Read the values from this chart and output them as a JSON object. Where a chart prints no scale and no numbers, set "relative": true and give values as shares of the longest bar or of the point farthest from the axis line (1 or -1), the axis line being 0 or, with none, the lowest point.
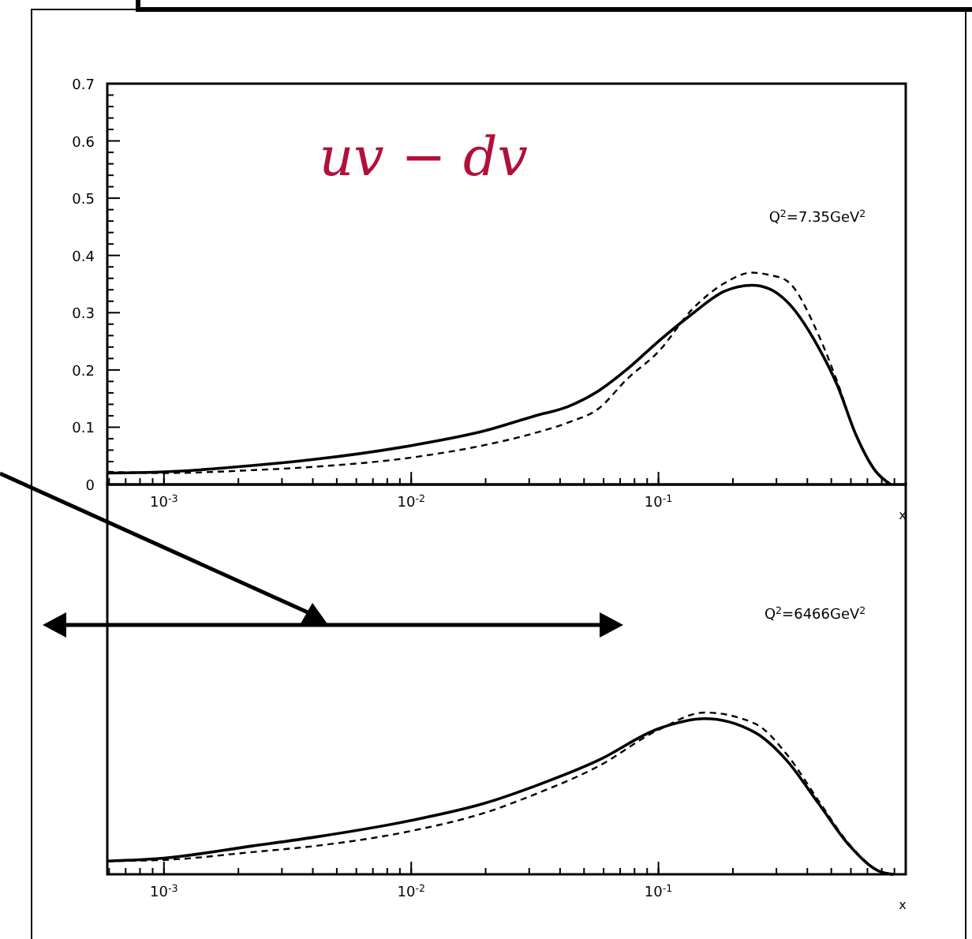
{
  "chart_data": [
    {
      "type": "line",
      "title": "uv − dv",
      "xlabel": "x",
      "log": "x",
      "xlim": [
        0.00059,
        1
      ],
      "xticks": [
        {
          "value": 0.001,
          "label": "10$^{-3}$"
        },
        {
          "value": 0.01,
          "label": "10$^{-2}$"
        },
        {
          "value": 0.1,
          "label": "10$^{-1}$"
        }
      ],
      "ylim": [
        0,
        0.7
      ],
      "yticks": [
        0,
        0.1,
        0.2,
        0.3,
        0.4,
        0.5,
        0.6,
        0.7
      ],
      "grid": false,
      "annotations": [
        "Q$^{2}$=7.35GeV$^{2}$"
      ],
      "series": [
        {
          "color": "#000000",
          "line_style": "solid",
          "x": [
            0.00059,
            0.001,
            0.00227,
            0.00408,
            0.01,
            0.0199,
            0.0317,
            0.043,
            0.057,
            0.075,
            0.1,
            0.137,
            0.184,
            0.239,
            0.28,
            0.33,
            0.443,
            0.528,
            0.63,
            0.75,
            0.869
          ],
          "values": [
            0.02,
            0.022,
            0.033,
            0.044,
            0.068,
            0.094,
            0.12,
            0.136,
            0.163,
            0.202,
            0.25,
            0.298,
            0.337,
            0.348,
            0.342,
            0.32,
            0.24,
            0.174,
            0.086,
            0.025,
            0
          ]
        },
        {
          "color": "#000000",
          "line_style": "dashed",
          "x": [
            0.00059,
            0.001,
            0.00227,
            0.00408,
            0.01,
            0.0199,
            0.0317,
            0.043,
            0.057,
            0.075,
            0.1,
            0.137,
            0.184,
            0.239,
            0.28,
            0.33,
            0.443,
            0.528,
            0.63,
            0.75,
            0.869
          ],
          "values": [
            0.022,
            0.02,
            0.025,
            0.031,
            0.047,
            0.069,
            0.09,
            0.108,
            0.132,
            0.185,
            0.232,
            0.306,
            0.351,
            0.37,
            0.366,
            0.356,
            0.262,
            0.18,
            0.086,
            0.025,
            0
          ]
        }
      ]
    },
    {
      "type": "line",
      "xlabel": "x",
      "log": "x",
      "relative": true,
      "xlim": [
        0.00059,
        1
      ],
      "xticks": [
        {
          "value": 0.001,
          "label": "10$^{-3}$"
        },
        {
          "value": 0.01,
          "label": "10$^{-2}$"
        },
        {
          "value": 0.1,
          "label": "10$^{-1}$"
        }
      ],
      "grid": false,
      "annotations": [
        "Q$^{2}$=6466GeV$^{2}$"
      ],
      "series": [
        {
          "color": "#000000",
          "line_style": "solid",
          "x": [
            0.00059,
            0.001,
            0.00227,
            0.00408,
            0.01,
            0.0199,
            0.0317,
            0.057,
            0.1,
            0.154,
            0.246,
            0.33,
            0.443,
            0.594,
            0.796,
            0.895
          ],
          "values": [
            0.082,
            0.1,
            0.175,
            0.23,
            0.333,
            0.44,
            0.546,
            0.704,
            0.9,
            0.962,
            0.876,
            0.704,
            0.44,
            0.175,
            0.014,
            0
          ]
        },
        {
          "color": "#000000",
          "line_style": "dashed",
          "x": [
            0.00059,
            0.001,
            0.00227,
            0.00408,
            0.01,
            0.0199,
            0.0317,
            0.057,
            0.1,
            0.154,
            0.246,
            0.33,
            0.443,
            0.594,
            0.796,
            0.895
          ],
          "values": [
            0.082,
            0.089,
            0.137,
            0.175,
            0.268,
            0.381,
            0.495,
            0.667,
            0.893,
            1,
            0.931,
            0.742,
            0.457,
            0.182,
            0.014,
            0
          ]
        }
      ]
    }
  ]
}
